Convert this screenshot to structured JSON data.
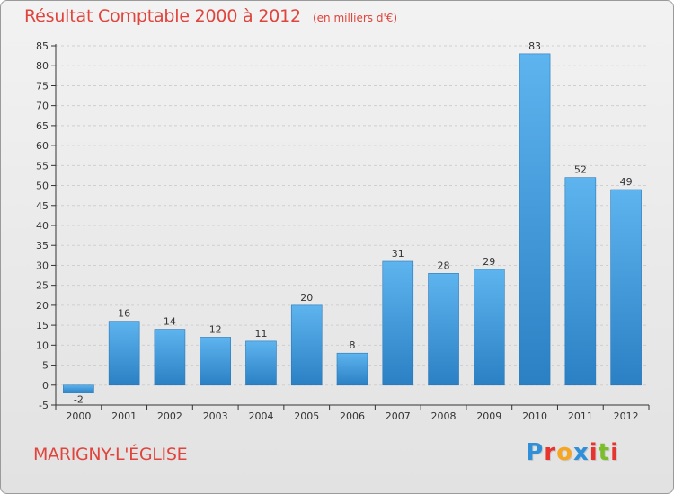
{
  "title": "Résultat Comptable 2000 à 2012",
  "subtitle": "(en milliers d'€)",
  "place": "MARIGNY-L'ÉGLISE",
  "logo": {
    "text": "Proxiti",
    "letters": [
      "P",
      "r",
      "o",
      "x",
      "i",
      "t",
      "i"
    ],
    "colors": [
      "#2f8fd8",
      "#e8342f",
      "#f5a623",
      "#2f8fd8",
      "#e8342f",
      "#7cbd2a",
      "#e8342f"
    ]
  },
  "colors": {
    "title": "#e0443c",
    "bar_light": "#5eb4ee",
    "bar_dark": "#2b80c4",
    "axis": "#333333",
    "grid": "#cfcfcf"
  },
  "chart_data": {
    "type": "bar",
    "title": "Résultat Comptable 2000 à 2012",
    "subtitle": "(en milliers d'€)",
    "xlabel": "",
    "ylabel": "",
    "categories": [
      "2000",
      "2001",
      "2002",
      "2003",
      "2004",
      "2005",
      "2006",
      "2007",
      "2008",
      "2009",
      "2010",
      "2011",
      "2012"
    ],
    "values": [
      -2,
      16,
      14,
      12,
      11,
      20,
      8,
      31,
      28,
      29,
      83,
      52,
      49
    ],
    "data_labels": [
      "-2",
      "16",
      "14",
      "12",
      "11",
      "20",
      "8",
      "31",
      "28",
      "29",
      "83",
      "52",
      "49"
    ],
    "ylim": [
      -5,
      85
    ],
    "yticks": [
      -5,
      0,
      5,
      10,
      15,
      20,
      25,
      30,
      35,
      40,
      45,
      50,
      55,
      60,
      65,
      70,
      75,
      80,
      85
    ],
    "grid": true,
    "legend": "none"
  }
}
